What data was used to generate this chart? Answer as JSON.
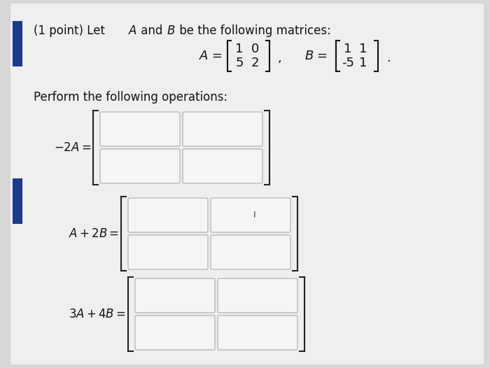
{
  "bg_color": "#d8d8d8",
  "page_color": "#e8e8e8",
  "page_inner_color": "#f2f2f2",
  "title_line": "(1 point) Let $A$ and $B$ be the following matrices:",
  "A_matrix": [
    [
      1,
      0
    ],
    [
      5,
      2
    ]
  ],
  "B_matrix": [
    [
      1,
      1
    ],
    [
      -5,
      1
    ]
  ],
  "perform_text": "Perform the following operations:",
  "op1_label": "$-2A =$",
  "op2_label": "$A + 2B =$",
  "op3_label": "$3A + 4B =$",
  "box_fill": "#ffffff",
  "box_edge": "#bbbbbb",
  "text_color": "#111111",
  "blue_accent": "#1a3a8a",
  "bracket_color": "#111111",
  "font_size": 12,
  "matrix_font_size": 13
}
